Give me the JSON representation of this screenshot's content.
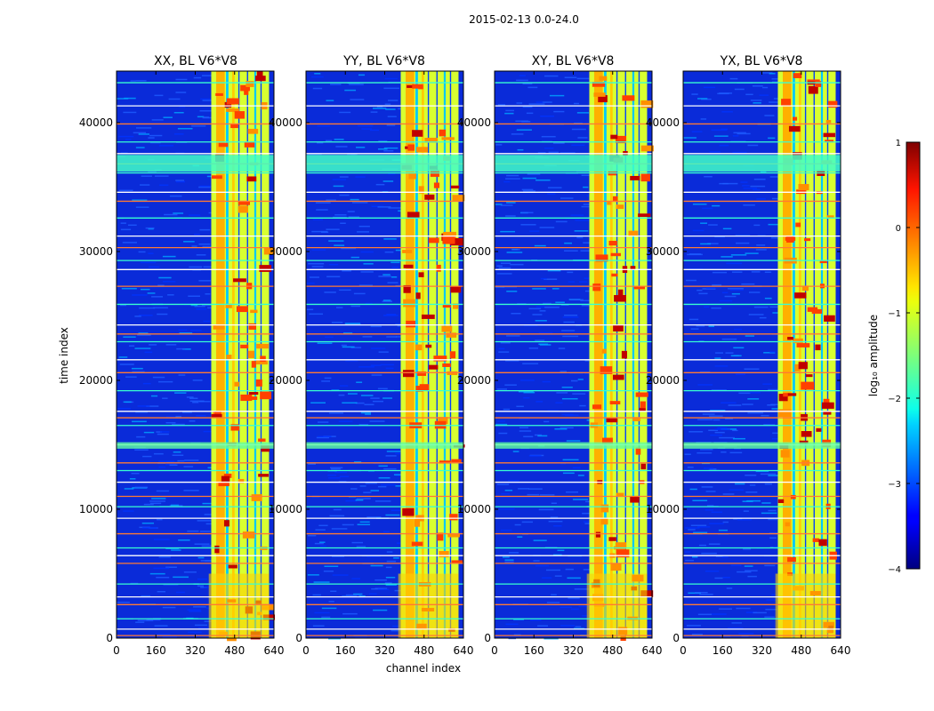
{
  "chart_data": {
    "type": "heatmap",
    "suptitle": "2015-02-13 0.0-24.0",
    "xlabel": "channel index",
    "ylabel": "time index",
    "xticks": [
      0,
      160,
      320,
      480,
      640
    ],
    "yticks": [
      0,
      10000,
      20000,
      30000,
      40000
    ],
    "xlim": [
      0,
      640
    ],
    "ylim": [
      0,
      44000
    ],
    "panels": [
      {
        "title": "XX, BL V6*V8",
        "polarization": "XX"
      },
      {
        "title": "YY, BL V6*V8",
        "polarization": "YY"
      },
      {
        "title": "XY, BL V6*V8",
        "polarization": "XY"
      },
      {
        "title": "YX, BL V6*V8",
        "polarization": "YX"
      }
    ],
    "colorbar": {
      "label": "log₁₀ amplitude",
      "colormap": "jet",
      "ticks": [
        1,
        0,
        -1,
        -2,
        -3,
        -4
      ],
      "range": [
        -4,
        1
      ]
    },
    "bright_channel_band": [
      385,
      620
    ],
    "flagged_time_rows": [
      200,
      700,
      1500,
      2600,
      3200,
      4200,
      5800,
      6400,
      7000,
      8100,
      9300,
      10200,
      11000,
      12100,
      13000,
      13600,
      15000,
      16500,
      17100,
      17600,
      19200,
      20600,
      21600,
      23000,
      23600,
      24300,
      25900,
      27300,
      28600,
      29300,
      30300,
      31200,
      32600,
      33900,
      34600,
      36100,
      36800,
      37600,
      38500,
      39900,
      41300,
      43100
    ]
  }
}
